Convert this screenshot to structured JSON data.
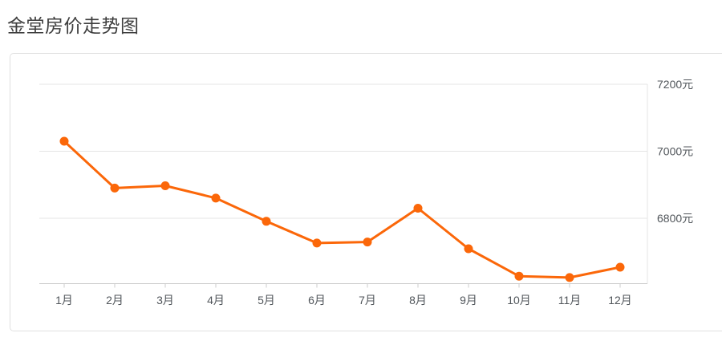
{
  "page": {
    "title": "金堂房价走势图"
  },
  "chart_data": {
    "type": "line",
    "title": "金堂房价走势图",
    "categories": [
      "1月",
      "2月",
      "3月",
      "4月",
      "5月",
      "6月",
      "7月",
      "8月",
      "9月",
      "10月",
      "11月",
      "12月"
    ],
    "series": [
      {
        "name": "金堂房价",
        "values": [
          7030,
          6890,
          6897,
          6860,
          6791,
          6726,
          6729,
          6830,
          6709,
          6627,
          6623,
          6654
        ]
      }
    ],
    "unit": "元",
    "y_ticks": [
      7200,
      7000,
      6800
    ],
    "y_tick_labels": [
      "7200元",
      "7000元",
      "6800元"
    ],
    "ylim": [
      6600,
      7250
    ],
    "grid": true,
    "legend": false,
    "legend_position": "none",
    "colors": {
      "line": "#fb6709",
      "point": "#fb6709",
      "grid": "#e5e5e5",
      "axis": "#cccccc",
      "label": "#51565b",
      "title": "#3e3e3e",
      "card_border": "#e0e0e0"
    }
  }
}
